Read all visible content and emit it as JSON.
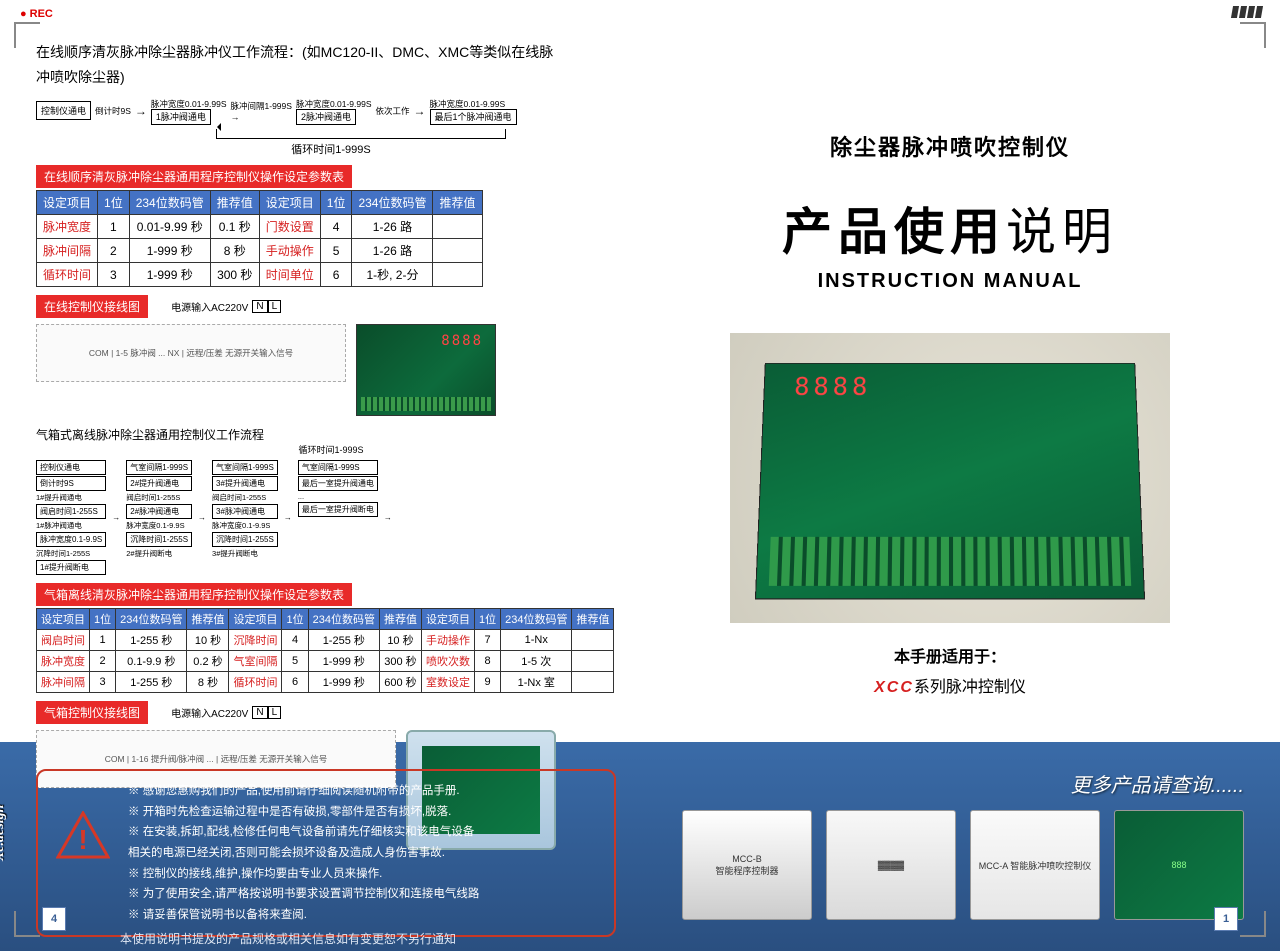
{
  "rec": "REC",
  "intro1": "在线顺序清灰脉冲除尘器脉冲仪工作流程：(如MC120-II、DMC、XMC等类似在线脉",
  "intro2": "冲喷吹除尘器)",
  "flow1": {
    "b1": "控制仪通电",
    "l1": "倒计时9S",
    "b2": "1脉冲阀通电",
    "l2_top": "脉冲宽度0.01-9.99S",
    "l2_bot": "脉冲间隔1-999S",
    "b3": "2脉冲阀通电",
    "l3_top": "脉冲宽度0.01-9.99S",
    "l3": "依次工作",
    "b4": "最后1个脉冲阀通电",
    "l4_top": "脉冲宽度0.01-9.99S",
    "cycle": "循环时间1-999S"
  },
  "hdr1": "在线顺序清灰脉冲除尘器通用程序控制仪操作设定参数表",
  "table1": {
    "cols": [
      "设定项目",
      "1位",
      "234位数码管",
      "推荐值",
      "设定项目",
      "1位",
      "234位数码管",
      "推荐值"
    ],
    "rows": [
      [
        "脉冲宽度",
        "1",
        "0.01-9.99 秒",
        "0.1 秒",
        "门数设置",
        "4",
        "1-26 路",
        ""
      ],
      [
        "脉冲间隔",
        "2",
        "1-999 秒",
        "8 秒",
        "手动操作",
        "5",
        "1-26 路",
        ""
      ],
      [
        "循环时间",
        "3",
        "1-999 秒",
        "300 秒",
        "时间单位",
        "6",
        "1-秒, 2-分",
        ""
      ]
    ]
  },
  "hdr2": "在线控制仪接线图",
  "pwr_label": "电源输入AC220V",
  "nl_n": "N",
  "nl_l": "L",
  "remote": "远程/压差\n无源开关输入信号",
  "hdr3": "气箱式离线脉冲除尘器通用控制仪工作流程",
  "hdr4": "气箱离线清灰脉冲除尘器通用程序控制仪操作设定参数表",
  "table2": {
    "cols": [
      "设定项目",
      "1位",
      "234位数码管",
      "推荐值",
      "设定项目",
      "1位",
      "234位数码管",
      "推荐值",
      "设定项目",
      "1位",
      "234位数码管",
      "推荐值"
    ],
    "rows": [
      [
        "阀启时间",
        "1",
        "1-255 秒",
        "10 秒",
        "沉降时间",
        "4",
        "1-255 秒",
        "10 秒",
        "手动操作",
        "7",
        "1-Nx",
        ""
      ],
      [
        "脉冲宽度",
        "2",
        "0.1-9.9 秒",
        "0.2 秒",
        "气室间隔",
        "5",
        "1-999 秒",
        "300 秒",
        "喷吹次数",
        "8",
        "1-5 次",
        ""
      ],
      [
        "脉冲间隔",
        "3",
        "1-255 秒",
        "8 秒",
        "循环时间",
        "6",
        "1-999 秒",
        "600 秒",
        "室数设定",
        "9",
        "1-Nx 室",
        ""
      ]
    ]
  },
  "hdr5": "气箱控制仪接线图",
  "cover": {
    "subtitle": "除尘器脉冲喷吹控制仪",
    "title_bold": "产品使用",
    "title_light": "说明",
    "eng": "INSTRUCTION  MANUAL",
    "applies": "本手册适用于：",
    "brand": "XCC",
    "series": "系列脉冲控制仪"
  },
  "warn": [
    "※  感谢您惠购我们的产品,使用前请仔细阅读随机附带的产品手册.",
    "※  开箱时先检查运输过程中是否有破损,零部件是否有损坏,脱落.",
    "※  在安装,拆卸,配线,检修任何电气设备前请先仔细核实和该电气设备",
    "      相关的电源已经关闭,否则可能会损坏设备及造成人身伤害事故.",
    "※  控制仪的接线,维护,操作均要由专业人员来操作.",
    "※  为了使用安全,请严格按说明书要求设置调节控制仪和连接电气线路",
    "※  请妥善保管说明书以备将来查阅."
  ],
  "more": "更多产品请查询......",
  "designer": "Xc.design",
  "page_left": "4",
  "page_right": "1",
  "footnote": "本使用说明书提及的产品规格或相关信息如有变更恕不另行通知",
  "flow2_cycle": "循环时间1-999S",
  "flow2_labels": {
    "init": "倒计时9S",
    "ctrl": "控制仪通电",
    "lift_on": "#提升阀通电",
    "lift_off": "#提升阀断电",
    "valve_on": "阀启时间1-255S",
    "pulse_on": "#脉冲阀通电",
    "pw": "脉冲宽度0.1-9.9S",
    "down": "沉降时间1-255S",
    "gap": "气室间隔1-999S",
    "last_on": "最后一室提升阀通电",
    "last_off": "最后一室提升阀断电"
  }
}
